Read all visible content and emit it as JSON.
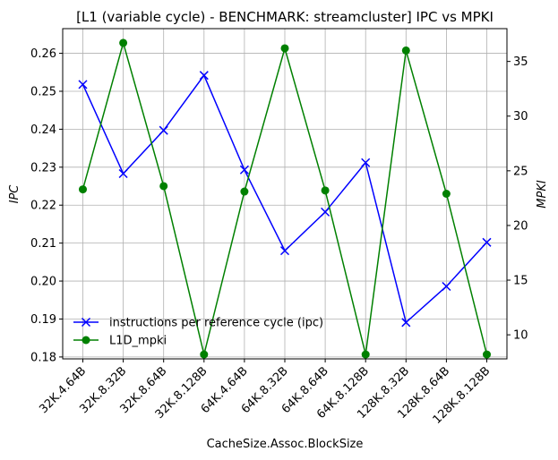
{
  "chart_data": {
    "type": "line",
    "title": "[L1 (variable cycle) - BENCHMARK: streamcluster]  IPC vs MPKI",
    "xlabel": "CacheSize.Assoc.BlockSize",
    "ylabel_left": "IPC",
    "ylabel_right": "MPKI",
    "categories": [
      "32K.4.64B",
      "32K.8.32B",
      "32K.8.64B",
      "32K.8.128B",
      "64K.4.64B",
      "64K.8.32B",
      "64K.8.64B",
      "64K.8.128B",
      "128K.8.32B",
      "128K.8.64B",
      "128K.8.128B"
    ],
    "ylim_left": [
      0.1795,
      0.2665
    ],
    "ylim_right": [
      7.8,
      38.0
    ],
    "yticks_left": [
      "0.18",
      "0.19",
      "0.20",
      "0.21",
      "0.22",
      "0.23",
      "0.24",
      "0.25",
      "0.26"
    ],
    "yticks_right": [
      "10",
      "15",
      "20",
      "25",
      "30",
      "35"
    ],
    "grid": true,
    "legend_position": "lower-left",
    "series": [
      {
        "name": "instructions per reference cycle (ipc)",
        "axis": "left",
        "color": "#0000ff",
        "marker": "x",
        "values": [
          0.2518,
          0.2283,
          0.2397,
          0.2542,
          0.2293,
          0.208,
          0.2182,
          0.2312,
          0.1891,
          0.1986,
          0.2102
        ]
      },
      {
        "name": "L1D_mpki",
        "axis": "right",
        "color": "#008000",
        "marker": "o",
        "values": [
          23.3,
          36.7,
          23.6,
          8.2,
          23.1,
          36.2,
          23.2,
          8.2,
          36.0,
          22.9,
          8.2
        ]
      }
    ]
  }
}
